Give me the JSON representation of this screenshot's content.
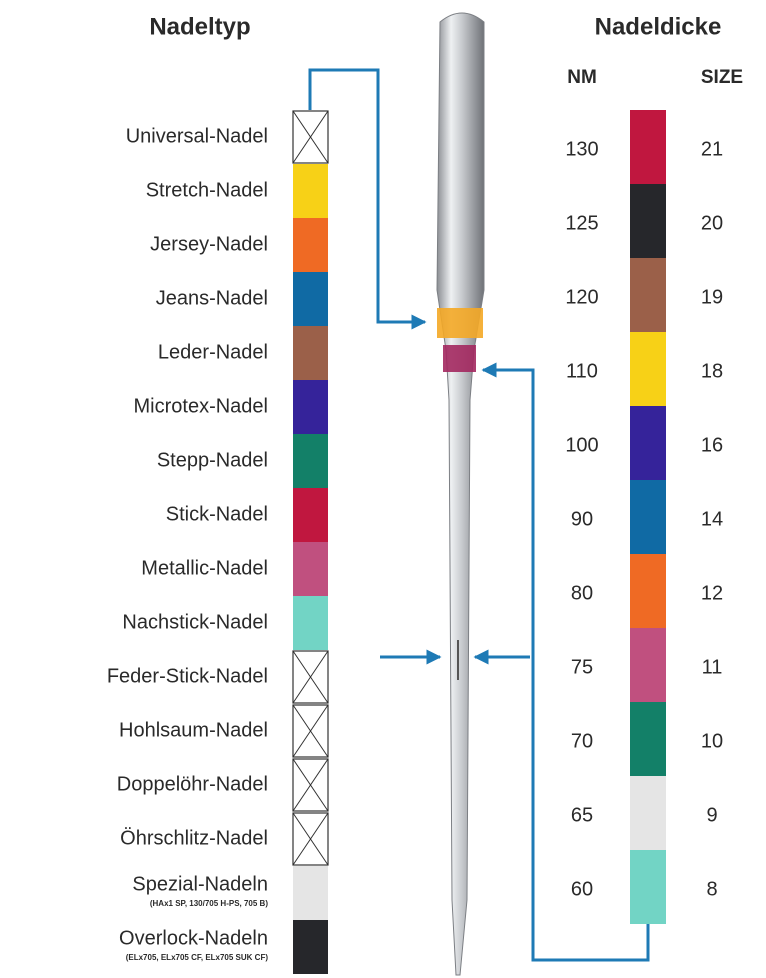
{
  "left": {
    "title": "Nadeltyp",
    "items": [
      {
        "label": "Universal-Nadel"
      },
      {
        "label": "Stretch-Nadel",
        "color": "#f7d117"
      },
      {
        "label": "Jersey-Nadel",
        "color": "#ef6a24"
      },
      {
        "label": "Jeans-Nadel",
        "color": "#106aa4"
      },
      {
        "label": "Leder-Nadel",
        "color": "#9b6049"
      },
      {
        "label": "Microtex-Nadel",
        "color": "#35239a"
      },
      {
        "label": "Stepp-Nadel",
        "color": "#138068"
      },
      {
        "label": "Stick-Nadel",
        "color": "#c0173f"
      },
      {
        "label": "Metallic-Nadel",
        "color": "#c0507f"
      },
      {
        "label": "Nachstick-Nadel",
        "color": "#72d4c5"
      },
      {
        "label": "Feder-Stick-Nadel"
      },
      {
        "label": "Hohlsaum-Nadel"
      },
      {
        "label": "Doppelöhr-Nadel"
      },
      {
        "label": "Öhrschlitz-Nadel"
      },
      {
        "label": "Spezial-Nadeln",
        "note": "(HAx1 SP, 130/705 H-PS, 705 B)",
        "color": "#e5e5e5"
      },
      {
        "label": "Overlock-Nadeln",
        "note": "(ELx705, ELx705 CF, ELx705 SUK CF)",
        "color": "#26272b"
      }
    ]
  },
  "right": {
    "title": "Nadeldicke",
    "nm_header": "NM",
    "size_header": "SIZE",
    "rows": [
      {
        "nm": 130,
        "size": 21,
        "color": "#c0173f"
      },
      {
        "nm": 125,
        "size": 20,
        "color": "#26272b"
      },
      {
        "nm": 120,
        "size": 19,
        "color": "#9b6049"
      },
      {
        "nm": 110,
        "size": 18,
        "color": "#f7d117"
      },
      {
        "nm": 100,
        "size": 16,
        "color": "#35239a"
      },
      {
        "nm": 90,
        "size": 14,
        "color": "#106aa4"
      },
      {
        "nm": 80,
        "size": 12,
        "color": "#ef6a24"
      },
      {
        "nm": 75,
        "size": 11,
        "color": "#c0507f"
      },
      {
        "nm": 70,
        "size": 10,
        "color": "#138068"
      },
      {
        "nm": 65,
        "size": 9,
        "color": "#e5e5e5"
      },
      {
        "nm": 60,
        "size": 8,
        "color": "#72d4c5"
      }
    ]
  }
}
